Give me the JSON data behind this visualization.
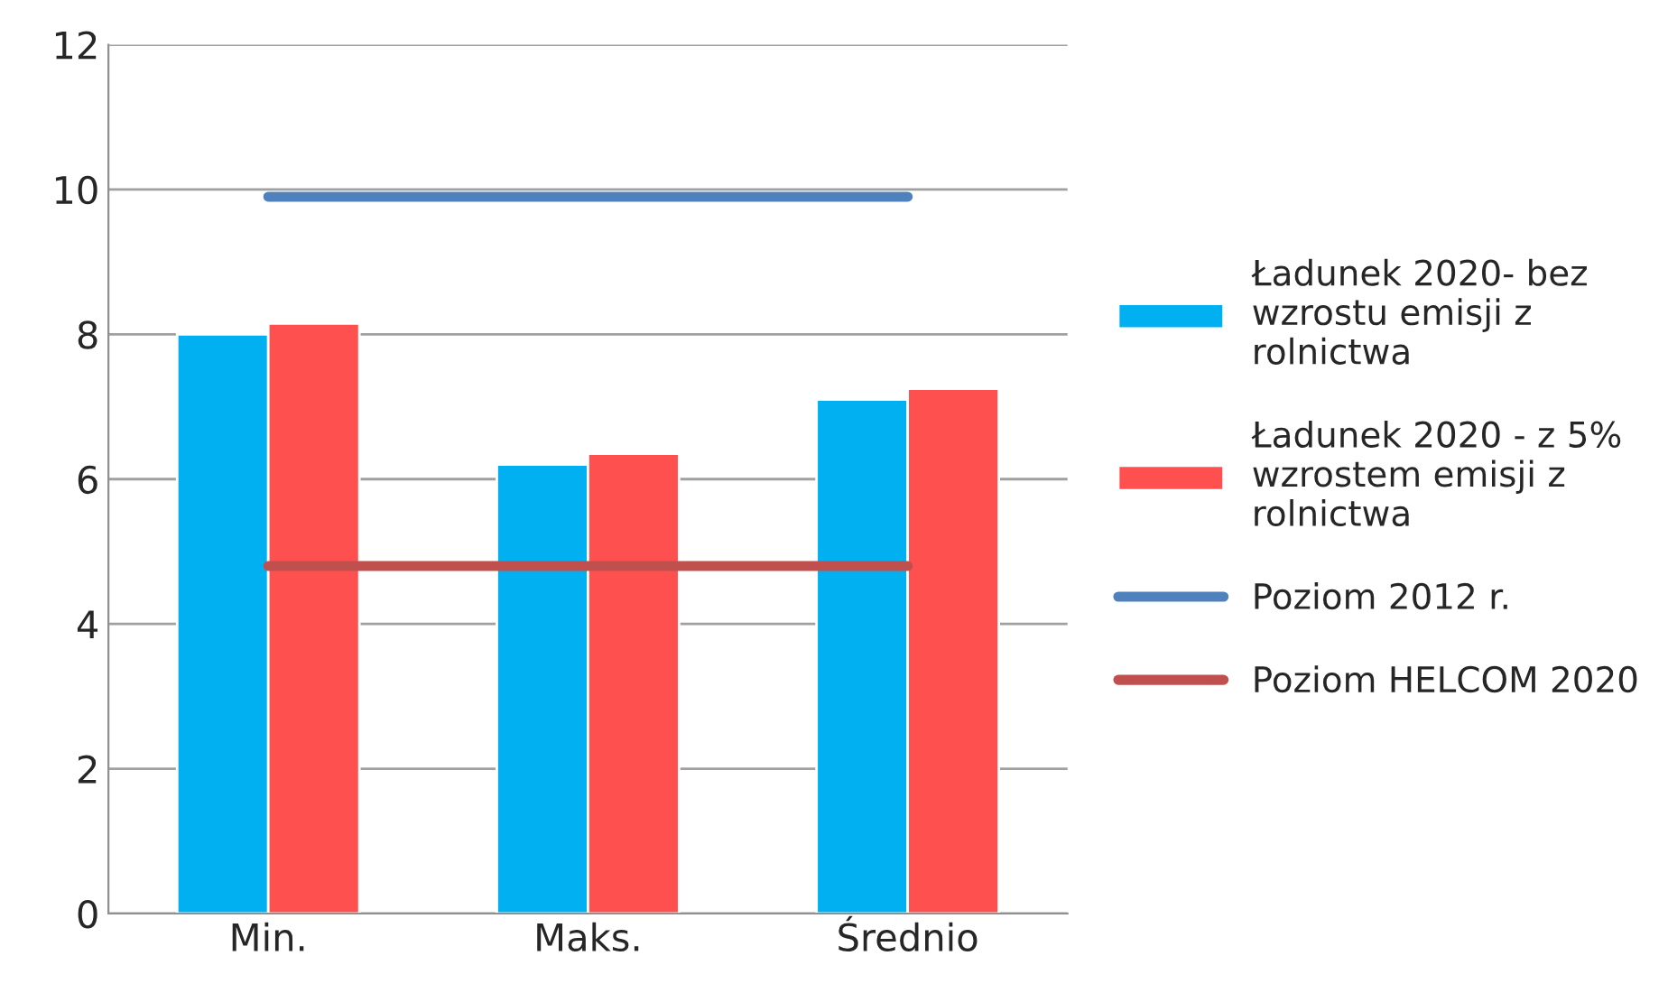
{
  "chart_data": {
    "type": "bar",
    "categories": [
      "Min.",
      "Maks.",
      "Średnio"
    ],
    "series": [
      {
        "name": "Ładunek 2020- bez\nwzrostu emisji z\nrolnictwa",
        "color": "#00b0f0",
        "values": [
          8.0,
          6.2,
          7.1
        ]
      },
      {
        "name": "Ładunek 2020 - z 5%\nwzrostem emisji z\nrolnictwa",
        "color": "#ff5050",
        "values": [
          8.15,
          6.35,
          7.25
        ]
      },
      {
        "name": "Poziom 2012 r.",
        "color": "#4f81bd",
        "type": "line",
        "values": [
          9.9,
          9.9,
          9.9
        ]
      },
      {
        "name": "Poziom HELCOM 2020",
        "color": "#c0504d",
        "type": "line",
        "values": [
          4.8,
          4.8,
          4.8
        ]
      }
    ],
    "ylim": [
      0,
      12
    ],
    "yticks": [
      0,
      2,
      4,
      6,
      8,
      10,
      12
    ],
    "grid": "y",
    "legend": "right"
  }
}
